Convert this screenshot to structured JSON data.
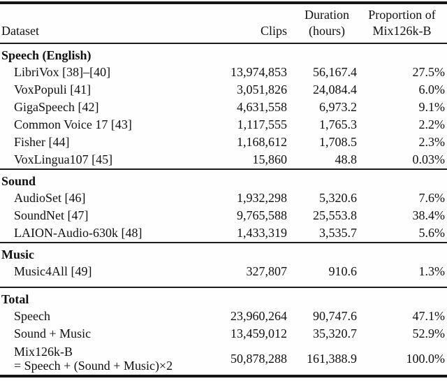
{
  "colors": {
    "text": "#101010",
    "background": "#ffffff",
    "rule": "#151515"
  },
  "table": {
    "header": {
      "dataset": "Dataset",
      "clips": "Clips",
      "duration_line1": "Duration",
      "duration_line2": "(hours)",
      "proportion_line1": "Proportion of",
      "proportion_line2": "Mix126k-B"
    },
    "sections": [
      {
        "title": "Speech (English)",
        "rows": [
          {
            "dataset": "LibriVox [38]–[40]",
            "clips": "13,974,853",
            "hours": "56,167.4",
            "proportion": "27.5%"
          },
          {
            "dataset": "VoxPopuli [41]",
            "clips": "3,051,826",
            "hours": "24,084.4",
            "proportion": "6.0%"
          },
          {
            "dataset": "GigaSpeech [42]",
            "clips": "4,631,558",
            "hours": "6,973.2",
            "proportion": "9.1%"
          },
          {
            "dataset": "Common Voice 17 [43]",
            "clips": "1,117,555",
            "hours": "1,765.3",
            "proportion": "2.2%"
          },
          {
            "dataset": "Fisher [44]",
            "clips": "1,168,612",
            "hours": "1,708.5",
            "proportion": "2.3%"
          },
          {
            "dataset": "VoxLingua107 [45]",
            "clips": "15,860",
            "hours": "48.8",
            "proportion": "0.03%"
          }
        ]
      },
      {
        "title": "Sound",
        "rows": [
          {
            "dataset": "AudioSet [46]",
            "clips": "1,932,298",
            "hours": "5,320.6",
            "proportion": "7.6%"
          },
          {
            "dataset": "SoundNet [47]",
            "clips": "9,765,588",
            "hours": "25,553.8",
            "proportion": "38.4%"
          },
          {
            "dataset": "LAION-Audio-630k [48]",
            "clips": "1,433,319",
            "hours": "3,535.7",
            "proportion": "5.6%"
          }
        ]
      },
      {
        "title": "Music",
        "rows": [
          {
            "dataset": "Music4All [49]",
            "clips": "327,807",
            "hours": "910.6",
            "proportion": "1.3%"
          }
        ]
      },
      {
        "title": "Total",
        "rows": [
          {
            "dataset": "Speech",
            "clips": "23,960,264",
            "hours": "90,747.6",
            "proportion": "47.1%"
          },
          {
            "dataset": "Sound + Music",
            "clips": "13,459,012",
            "hours": "35,320.7",
            "proportion": "52.9%"
          }
        ],
        "total_row": {
          "dataset_line1": "Mix126k-B",
          "dataset_line2": "= Speech + (Sound + Music)×2",
          "clips": "50,878,288",
          "hours": "161,388.9",
          "proportion": "100.0%"
        }
      }
    ]
  }
}
